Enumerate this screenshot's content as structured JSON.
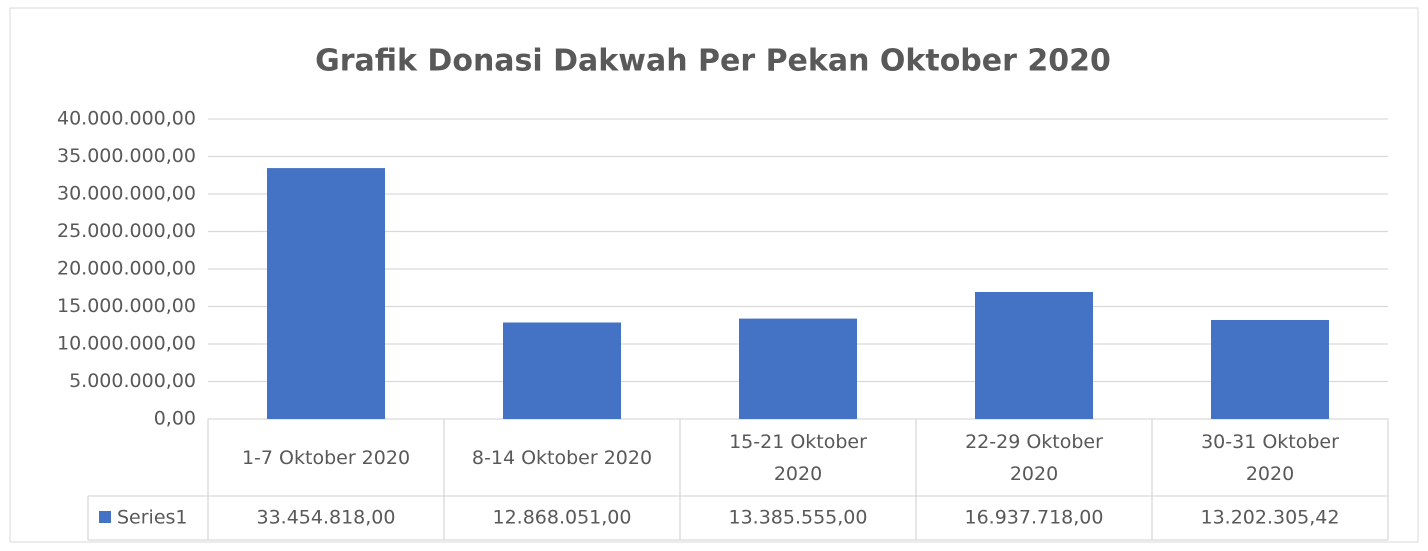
{
  "chart_data": {
    "type": "bar",
    "title": "Grafik Donasi Dakwah Per Pekan Oktober 2020",
    "categories": [
      "1-7 Oktober 2020",
      "8-14 Oktober 2020",
      "15-21 Oktober 2020",
      "22-29 Oktober 2020",
      "30-31 Oktober 2020"
    ],
    "series": [
      {
        "name": "Series1",
        "color": "#4472c4",
        "values": [
          33454818,
          12868051,
          13385555,
          16937718,
          13202305.42
        ],
        "value_labels": [
          "33.454.818,00",
          "12.868.051,00",
          "13.385.555,00",
          "16.937.718,00",
          "13.202.305,42"
        ]
      }
    ],
    "ylim": [
      0,
      40000000
    ],
    "yticks": [
      {
        "value": 0,
        "label": "0,00"
      },
      {
        "value": 5000000,
        "label": "5.000.000,00"
      },
      {
        "value": 10000000,
        "label": "10.000.000,00"
      },
      {
        "value": 15000000,
        "label": "15.000.000,00"
      },
      {
        "value": 20000000,
        "label": "20.000.000,00"
      },
      {
        "value": 25000000,
        "label": "25.000.000,00"
      },
      {
        "value": 30000000,
        "label": "30.000.000,00"
      },
      {
        "value": 35000000,
        "label": "35.000.000,00"
      },
      {
        "value": 40000000,
        "label": "40.000.000,00"
      }
    ],
    "grid": true
  }
}
